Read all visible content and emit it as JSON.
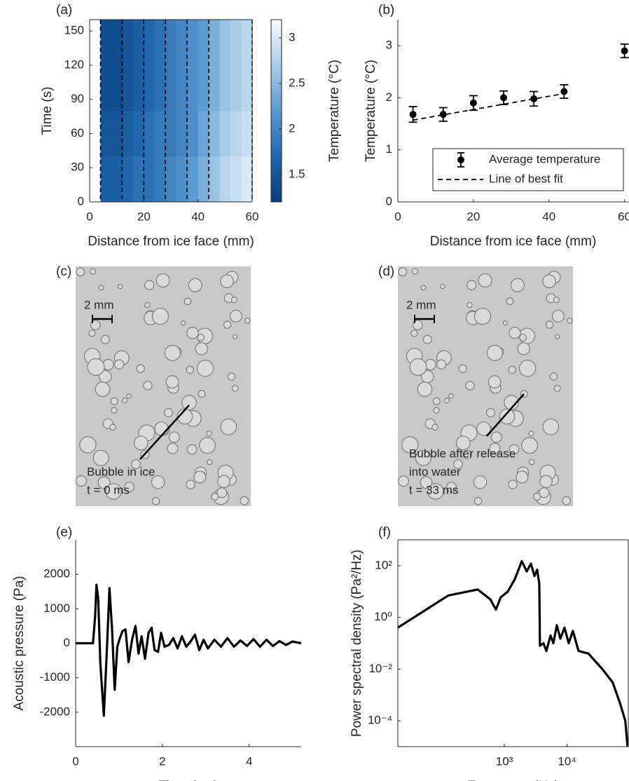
{
  "chart_data": [
    {
      "type": "heatmap",
      "panel": "(a)",
      "xlabel": "Distance from ice face (mm)",
      "ylabel": "Time (s)",
      "xlim": [
        0,
        60
      ],
      "ylim": [
        0,
        160
      ],
      "xticks": [
        0,
        20,
        40,
        60
      ],
      "yticks": [
        0,
        30,
        60,
        90,
        120,
        150
      ],
      "box": true,
      "x_edges": [
        4,
        8,
        12,
        16,
        20,
        24,
        28,
        32,
        36,
        40,
        44,
        48,
        52,
        56,
        60
      ],
      "y_edges": [
        0,
        40,
        80,
        120,
        160
      ],
      "z": [
        [
          1.6,
          1.6,
          1.7,
          1.8,
          1.8,
          1.9,
          2.0,
          2.1,
          2.2,
          2.4,
          2.6,
          2.8,
          2.9,
          3.0
        ],
        [
          1.5,
          1.5,
          1.6,
          1.7,
          1.8,
          1.9,
          1.9,
          2.0,
          2.1,
          2.3,
          2.5,
          2.7,
          2.8,
          2.9
        ],
        [
          1.4,
          1.4,
          1.5,
          1.6,
          1.7,
          1.8,
          1.9,
          2.0,
          2.1,
          2.2,
          2.4,
          2.6,
          2.7,
          2.8
        ],
        [
          1.4,
          1.4,
          1.5,
          1.6,
          1.7,
          1.8,
          1.9,
          2.0,
          2.1,
          2.2,
          2.4,
          2.6,
          2.7,
          2.8
        ]
      ],
      "probe_x": [
        4,
        12,
        20,
        28,
        36,
        44,
        60
      ],
      "colormap": [
        "#083c7c",
        "#1f66ad",
        "#5a9bd0",
        "#a9cde8",
        "#f7fbff"
      ],
      "clim": [
        1.2,
        3.2
      ],
      "cticks": [
        1.5,
        2,
        2.5,
        3
      ],
      "clabel": "Temperature (°C)"
    },
    {
      "type": "errorbar",
      "panel": "(b)",
      "xlabel": "Distance from ice face (mm)",
      "ylabel": "Temperature (°C)",
      "xlim": [
        0,
        61
      ],
      "ylim": [
        0,
        3.5
      ],
      "xticks": [
        0,
        20,
        40,
        60
      ],
      "yticks": [
        0,
        1,
        2,
        3
      ],
      "legend": "lower right",
      "series": [
        {
          "name": "Average temperature",
          "color": "#000000",
          "style": "errorbar",
          "x": [
            4,
            12,
            20,
            28,
            36,
            44,
            60
          ],
          "values": [
            1.68,
            1.68,
            1.9,
            2.0,
            1.98,
            2.12,
            2.9
          ],
          "errors": [
            0.15,
            0.13,
            0.14,
            0.13,
            0.14,
            0.13,
            0.13
          ]
        },
        {
          "name": "Line of best fit",
          "color": "#000000",
          "style": "dashed",
          "x": [
            4,
            44
          ],
          "values": [
            1.57,
            2.08
          ]
        }
      ]
    },
    {
      "type": "line",
      "panel": "(e)",
      "xlabel": "Time (ms)",
      "ylabel": "Acoustic pressure (Pa)",
      "xlim": [
        0,
        5.2
      ],
      "ylim": [
        -3000,
        3000
      ],
      "xticks": [
        0,
        2,
        4
      ],
      "yticks": [
        -2000,
        -1000,
        0,
        1000,
        2000
      ],
      "color": "#000000",
      "x": [
        0,
        0.4,
        0.45,
        0.48,
        0.52,
        0.57,
        0.65,
        0.72,
        0.78,
        0.84,
        0.9,
        0.96,
        1.02,
        1.08,
        1.15,
        1.22,
        1.3,
        1.38,
        1.45,
        1.52,
        1.6,
        1.68,
        1.75,
        1.82,
        1.9,
        1.97,
        2.05,
        2.15,
        2.25,
        2.35,
        2.45,
        2.55,
        2.65,
        2.75,
        2.85,
        2.95,
        3.05,
        3.2,
        3.35,
        3.5,
        3.65,
        3.8,
        3.95,
        4.1,
        4.25,
        4.4,
        4.55,
        4.7,
        4.85,
        5.0,
        5.2
      ],
      "values": [
        0,
        0,
        800,
        1700,
        1300,
        -600,
        -2100,
        -200,
        1600,
        400,
        -1350,
        -100,
        150,
        350,
        400,
        -550,
        100,
        500,
        -300,
        200,
        -450,
        300,
        450,
        -200,
        -250,
        300,
        -100,
        -50,
        150,
        -150,
        200,
        -100,
        50,
        250,
        -200,
        100,
        -150,
        100,
        -100,
        150,
        -100,
        80,
        -80,
        120,
        -100,
        100,
        -80,
        60,
        -50,
        50,
        0
      ]
    },
    {
      "type": "line",
      "panel": "(f)",
      "xlabel": "Frequency (Hz)",
      "ylabel": "Power spectral density (Pa²/Hz)",
      "xscale": "log",
      "yscale": "log",
      "box": true,
      "xlim": [
        20,
        95000
      ],
      "ylim": [
        1e-05,
        1000
      ],
      "xticks": [
        {
          "value": 1000,
          "label": "10³"
        },
        {
          "value": 10000,
          "label": "10⁴"
        }
      ],
      "yticks": [
        {
          "value": 0.0001,
          "label": "10⁻⁴"
        },
        {
          "value": 0.01,
          "label": "10⁻²"
        },
        {
          "value": 1,
          "label": "10⁰"
        },
        {
          "value": 100,
          "label": "10²"
        }
      ],
      "color": "#000000",
      "x": [
        20,
        127,
        376,
        597,
        733,
        877,
        1135,
        1470,
        1900,
        2275,
        2655,
        3020,
        3340,
        3610,
        3700,
        4215,
        4680,
        5460,
        6050,
        6880,
        7820,
        9120,
        10640,
        12400,
        15270,
        21900,
        36600,
        53700,
        69700,
        85100,
        92500
      ],
      "values": [
        0.4,
        7,
        12,
        5,
        2,
        6,
        10,
        30,
        150,
        60,
        120,
        40,
        70,
        20,
        0.08,
        0.1,
        0.05,
        0.2,
        0.1,
        0.5,
        0.15,
        0.4,
        0.1,
        0.3,
        0.05,
        0.04,
        0.01,
        0.003,
        0.0005,
        0.0001,
        1e-05
      ]
    }
  ],
  "images": [
    {
      "panel": "(c)",
      "scale": "2 mm",
      "caption": [
        "Bubble in ice",
        "t = 0 ms"
      ]
    },
    {
      "panel": "(d)",
      "scale": "2 mm",
      "caption": [
        "Bubble after release",
        "into water",
        "t = 33 ms"
      ]
    }
  ]
}
